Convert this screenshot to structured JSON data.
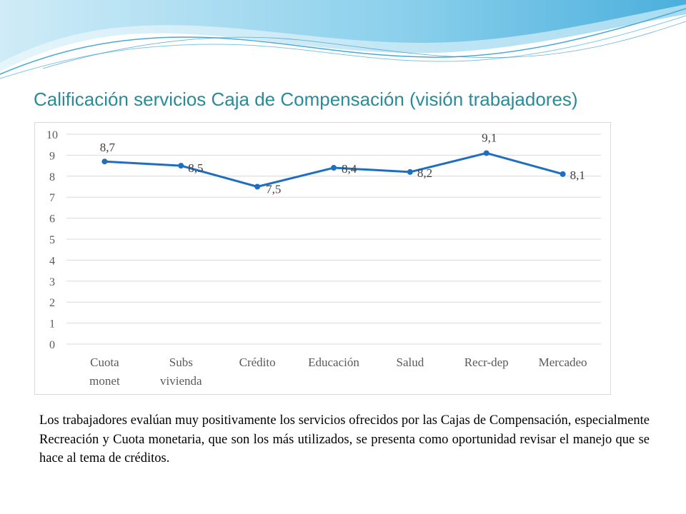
{
  "slide": {
    "title": "Calificación servicios Caja de Compensación (visión trabajadores)",
    "body": "Los trabajadores evalúan muy positivamente los servicios ofrecidos por las Cajas de Compensación, especialmente Recreación y Cuota monetaria, que son los más utilizados, se presenta como oportunidad  revisar el manejo que se hace al tema de créditos."
  },
  "colors": {
    "title": "#2a8a9a",
    "series_line": "#1f6fc0",
    "gridline": "#d9d9d9",
    "wave_light": "#bfe6f5",
    "wave_dark": "#5ab8e0"
  },
  "chart_data": {
    "type": "line",
    "categories": [
      [
        "Cuota",
        "monet"
      ],
      [
        "Subs",
        "vivienda"
      ],
      [
        "Crédito"
      ],
      [
        "Educación"
      ],
      [
        "Salud"
      ],
      [
        "Recr-dep"
      ],
      [
        "Mercadeo"
      ]
    ],
    "series": [
      {
        "values": [
          8.7,
          8.5,
          7.5,
          8.4,
          8.2,
          9.1,
          8.1
        ]
      }
    ],
    "data_labels": [
      "8,7",
      "8,5",
      "7,5",
      "8,4",
      "8,2",
      "9,1",
      "8,1"
    ],
    "y_ticks": [
      0,
      1,
      2,
      3,
      4,
      5,
      6,
      7,
      8,
      9,
      10
    ],
    "ylim": [
      0,
      10
    ],
    "grid": true,
    "legend": "none"
  }
}
